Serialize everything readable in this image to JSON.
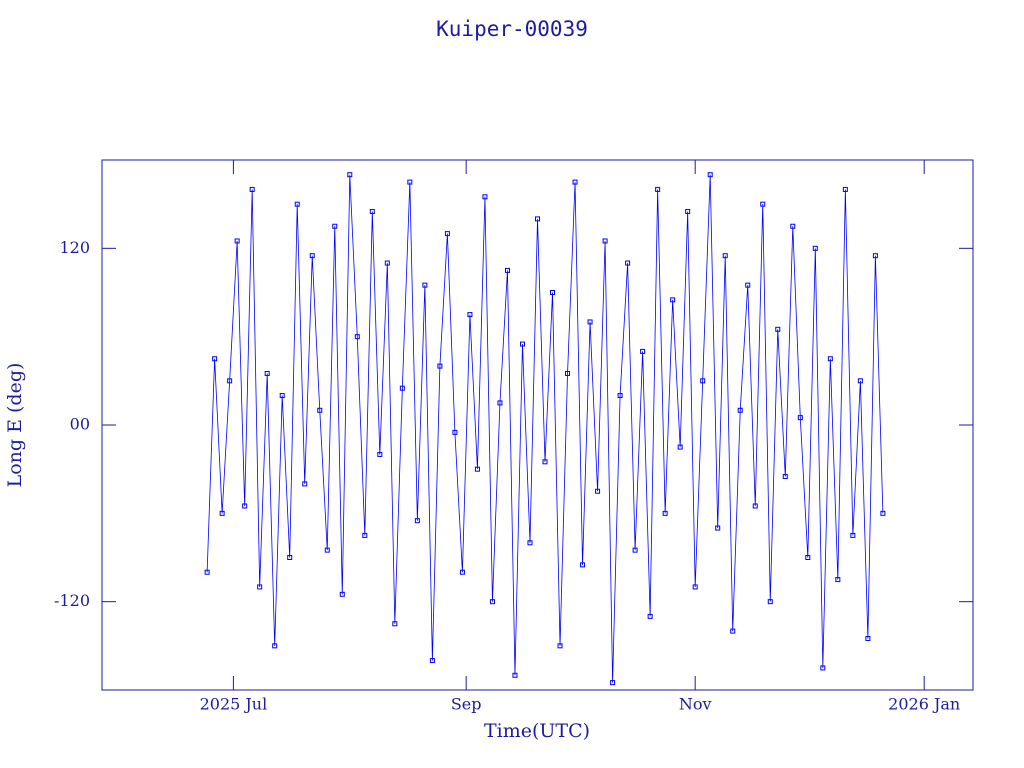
{
  "chart_data": {
    "type": "line",
    "title": "Kuiper-00039",
    "x_label": "Time(UTC)",
    "y_label": "Long E (deg)",
    "color": "#0000ff",
    "xlim": [
      "2025-05-27",
      "2026-01-14"
    ],
    "xticks": [
      {
        "value": "2025-07-01",
        "label": "2025 Jul"
      },
      {
        "value": "2025-09-01",
        "label": "Sep"
      },
      {
        "value": "2025-11-01",
        "label": "Nov"
      },
      {
        "value": "2026-01-01",
        "label": "2026 Jan"
      }
    ],
    "ylim": [
      -180,
      180
    ],
    "yticks": [
      -120,
      {
        "value": 0,
        "label": "00"
      },
      120
    ],
    "x": [
      "2025-06-24",
      "2025-06-26",
      "2025-06-28",
      "2025-06-30",
      "2025-07-02",
      "2025-07-04",
      "2025-07-06",
      "2025-07-08",
      "2025-07-10",
      "2025-07-12",
      "2025-07-14",
      "2025-07-16",
      "2025-07-18",
      "2025-07-20",
      "2025-07-22",
      "2025-07-24",
      "2025-07-26",
      "2025-07-28",
      "2025-07-30",
      "2025-08-01",
      "2025-08-03",
      "2025-08-05",
      "2025-08-07",
      "2025-08-09",
      "2025-08-11",
      "2025-08-13",
      "2025-08-15",
      "2025-08-17",
      "2025-08-19",
      "2025-08-21",
      "2025-08-23",
      "2025-08-25",
      "2025-08-27",
      "2025-08-29",
      "2025-08-31",
      "2025-09-02",
      "2025-09-04",
      "2025-09-06",
      "2025-09-08",
      "2025-09-10",
      "2025-09-12",
      "2025-09-14",
      "2025-09-16",
      "2025-09-18",
      "2025-09-20",
      "2025-09-22",
      "2025-09-24",
      "2025-09-26",
      "2025-09-28",
      "2025-09-30",
      "2025-10-02",
      "2025-10-04",
      "2025-10-06",
      "2025-10-08",
      "2025-10-10",
      "2025-10-12",
      "2025-10-14",
      "2025-10-16",
      "2025-10-18",
      "2025-10-20",
      "2025-10-22",
      "2025-10-24",
      "2025-10-26",
      "2025-10-28",
      "2025-10-30",
      "2025-11-01",
      "2025-11-03",
      "2025-11-05",
      "2025-11-07",
      "2025-11-09",
      "2025-11-11",
      "2025-11-13",
      "2025-11-15",
      "2025-11-17",
      "2025-11-19",
      "2025-11-21",
      "2025-11-23",
      "2025-11-25",
      "2025-11-27",
      "2025-11-29",
      "2025-12-01",
      "2025-12-03",
      "2025-12-05",
      "2025-12-07",
      "2025-12-09",
      "2025-12-11",
      "2025-12-13",
      "2025-12-15",
      "2025-12-17",
      "2025-12-19",
      "2025-12-21"
    ],
    "values": [
      -100,
      45,
      -60,
      30,
      125,
      -55,
      160,
      -110,
      35,
      -150,
      20,
      -90,
      150,
      -40,
      115,
      10,
      -85,
      135,
      -115,
      170,
      60,
      -75,
      145,
      -20,
      110,
      -135,
      25,
      165,
      -65,
      95,
      -160,
      40,
      130,
      -5,
      -100,
      75,
      -30,
      155,
      -120,
      15,
      105,
      -170,
      55,
      -80,
      140,
      -25,
      90,
      -150,
      35,
      165,
      -95,
      70,
      -45,
      125,
      -175,
      20,
      110,
      -85,
      50,
      -130,
      160,
      -60,
      85,
      -15,
      145,
      -110,
      30,
      170,
      -70,
      115,
      -140,
      10,
      95,
      -55,
      150,
      -120,
      65,
      -35,
      135,
      5,
      -90,
      120,
      -165,
      45,
      -105,
      160,
      -75,
      30,
      -145,
      115,
      -60
    ]
  }
}
